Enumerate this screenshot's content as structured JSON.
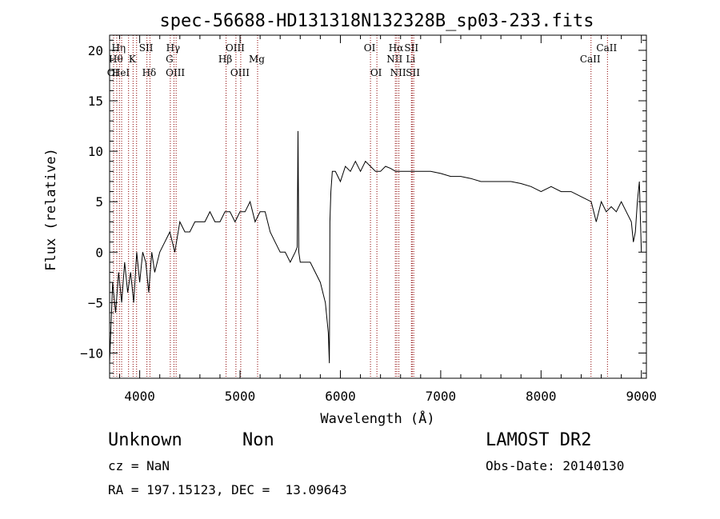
{
  "chart_data": {
    "type": "line",
    "title": "spec-56688-HD131318N132328B_sp03-233.fits",
    "xlabel": "Wavelength (Å)",
    "ylabel": "Flux (relative)",
    "xlim": [
      3700,
      9050
    ],
    "ylim": [
      -12.5,
      21.5
    ],
    "x_ticks": [
      4000,
      5000,
      6000,
      7000,
      8000,
      9000
    ],
    "y_ticks": [
      -10,
      -5,
      0,
      5,
      10,
      15,
      20
    ],
    "series_color": "#000000",
    "line_color": "#8b0000",
    "series": [
      {
        "x": [
          3700,
          3730,
          3760,
          3790,
          3820,
          3850,
          3880,
          3910,
          3940,
          3970,
          4000,
          4030,
          4060,
          4090,
          4120,
          4150,
          4200,
          4250,
          4300,
          4350,
          4400,
          4450,
          4500,
          4550,
          4600,
          4650,
          4700,
          4750,
          4800,
          4850,
          4900,
          4950,
          5000,
          5050,
          5100,
          5150,
          5200,
          5250,
          5300,
          5350,
          5400,
          5450,
          5500,
          5550,
          5570,
          5578,
          5586,
          5600,
          5650,
          5700,
          5750,
          5800,
          5850,
          5880,
          5890,
          5896,
          5905,
          5920,
          5950,
          6000,
          6050,
          6100,
          6150,
          6200,
          6250,
          6300,
          6350,
          6400,
          6450,
          6500,
          6550,
          6600,
          6650,
          6700,
          6750,
          6800,
          6900,
          7000,
          7100,
          7200,
          7300,
          7400,
          7500,
          7600,
          7700,
          7800,
          7900,
          8000,
          8100,
          8200,
          8300,
          8400,
          8500,
          8550,
          8600,
          8650,
          8700,
          8750,
          8800,
          8850,
          8900,
          8920,
          8940,
          8960,
          8980,
          9000
        ],
        "y": [
          -11,
          -3,
          -6,
          -2,
          -5,
          -1,
          -4,
          -2,
          -5,
          0,
          -3,
          0,
          -1,
          -4,
          0,
          -2,
          0,
          1,
          2,
          0,
          3,
          2,
          2,
          3,
          3,
          3,
          4,
          3,
          3,
          4,
          4,
          3,
          4,
          4,
          5,
          3,
          4,
          4,
          2,
          1,
          0,
          0,
          -1,
          0,
          0.5,
          12,
          0,
          -1,
          -1,
          -1,
          -2,
          -3,
          -5,
          -8,
          -11,
          3,
          6,
          8,
          8,
          7,
          8.5,
          8,
          9,
          8,
          9,
          8.5,
          8,
          8,
          8.5,
          8.3,
          8,
          8,
          8,
          8,
          8,
          8,
          8,
          7.8,
          7.5,
          7.5,
          7.3,
          7,
          7,
          7,
          7,
          6.8,
          6.5,
          6,
          6.5,
          6,
          6,
          5.5,
          5,
          3,
          5,
          4,
          4.5,
          4,
          5,
          4,
          3,
          1,
          2,
          5,
          7,
          0
        ]
      }
    ],
    "lines": [
      {
        "x": 3740,
        "label": "OI",
        "row": 3
      },
      {
        "x": 3771,
        "label": "Hθ",
        "row": 2
      },
      {
        "x": 3798,
        "label": "Hη",
        "row": 1
      },
      {
        "x": 3820,
        "label": "HeI",
        "row": 3
      },
      {
        "x": 3889,
        "label": "",
        "row": 0
      },
      {
        "x": 3934,
        "label": "K",
        "row": 2
      },
      {
        "x": 3969,
        "label": "",
        "row": 0
      },
      {
        "x": 4072,
        "label": "SII",
        "row": 1
      },
      {
        "x": 4102,
        "label": "Hδ",
        "row": 3
      },
      {
        "x": 4305,
        "label": "G",
        "row": 2
      },
      {
        "x": 4341,
        "label": "Hγ",
        "row": 1
      },
      {
        "x": 4363,
        "label": "OIII",
        "row": 3
      },
      {
        "x": 4861,
        "label": "Hβ",
        "row": 2
      },
      {
        "x": 4959,
        "label": "OIII",
        "row": 1
      },
      {
        "x": 5007,
        "label": "OIII",
        "row": 3
      },
      {
        "x": 5175,
        "label": "Mg",
        "row": 2
      },
      {
        "x": 6300,
        "label": "OI",
        "row": 1
      },
      {
        "x": 6364,
        "label": "OI",
        "row": 3
      },
      {
        "x": 6548,
        "label": "NII",
        "row": 2
      },
      {
        "x": 6563,
        "label": "Hα",
        "row": 1
      },
      {
        "x": 6583,
        "label": "NII",
        "row": 3
      },
      {
        "x": 6708,
        "label": "Li",
        "row": 2
      },
      {
        "x": 6716,
        "label": "SII",
        "row": 1
      },
      {
        "x": 6731,
        "label": "SII",
        "row": 3
      },
      {
        "x": 8498,
        "label": "CaII",
        "row": 2
      },
      {
        "x": 8662,
        "label": "CaII",
        "row": 1
      }
    ]
  },
  "info": {
    "object": "Unknown",
    "class": "Non",
    "survey": "LAMOST DR2",
    "cz": "cz = NaN",
    "obs_date": "Obs-Date: 20140130",
    "coords": "RA = 197.15123, DEC =  13.09643"
  }
}
